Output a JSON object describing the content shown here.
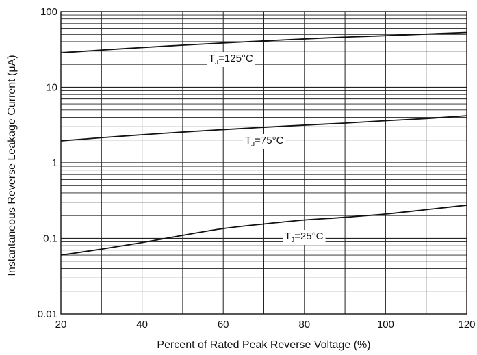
{
  "chart_data": {
    "type": "line",
    "title": "",
    "xlabel": "Percent of Rated Peak Reverse Voltage (%)",
    "ylabel": "Instantaneous Reverse Leakage Current (μA)",
    "xlim": [
      20,
      120
    ],
    "ylim": [
      0.01,
      100
    ],
    "yscale": "log",
    "grid": true,
    "x_ticks": [
      20,
      40,
      60,
      80,
      100,
      120
    ],
    "x_tick_labels": [
      "20",
      "40",
      "60",
      "80",
      "100",
      "120"
    ],
    "y_ticks": [
      0.01,
      0.1,
      1,
      10,
      100
    ],
    "y_tick_labels": [
      "0.01",
      "0.1",
      "1",
      "10",
      "100"
    ],
    "line_color": "#111111",
    "grid_color": "#222222",
    "series": [
      {
        "label_main": "T",
        "label_sub": "J",
        "label_suffix": "=125°C",
        "x": [
          20,
          30,
          40,
          50,
          60,
          70,
          80,
          90,
          100,
          110,
          120
        ],
        "y": [
          28.5,
          31,
          33.5,
          36,
          38.5,
          41,
          43.5,
          46,
          48,
          50.5,
          53
        ]
      },
      {
        "label_main": "T",
        "label_sub": "J",
        "label_suffix": "=75°C",
        "x": [
          20,
          30,
          40,
          50,
          60,
          70,
          80,
          90,
          100,
          110,
          120
        ],
        "y": [
          1.95,
          2.15,
          2.35,
          2.55,
          2.75,
          2.95,
          3.15,
          3.35,
          3.6,
          3.85,
          4.2
        ]
      },
      {
        "label_main": "T",
        "label_sub": "J",
        "label_suffix": "=25°C",
        "x": [
          20,
          30,
          40,
          50,
          60,
          70,
          80,
          90,
          100,
          110,
          120
        ],
        "y": [
          0.06,
          0.072,
          0.088,
          0.11,
          0.135,
          0.155,
          0.175,
          0.19,
          0.21,
          0.24,
          0.275
        ]
      }
    ]
  }
}
